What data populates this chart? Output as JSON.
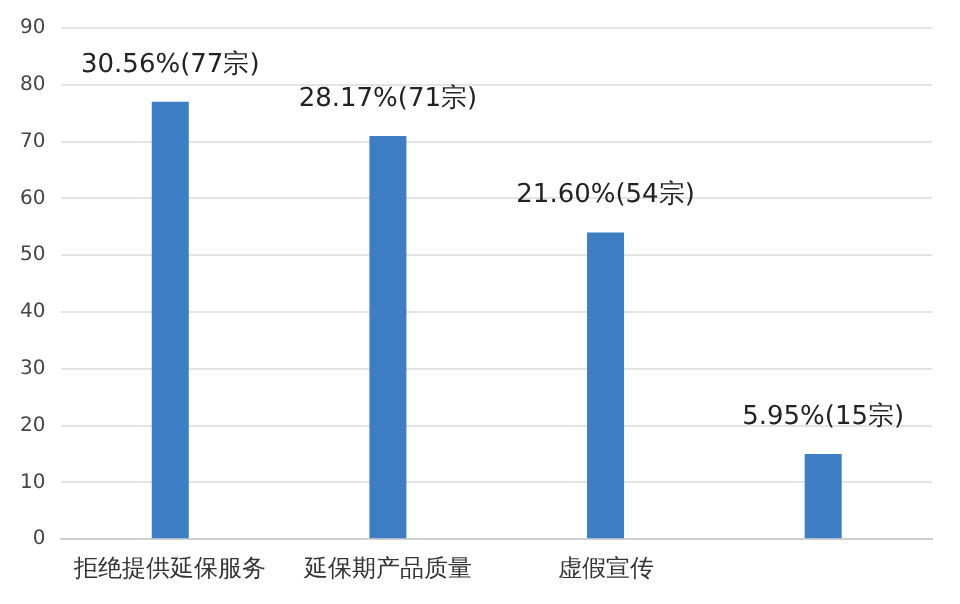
{
  "chart_data": {
    "type": "bar",
    "categories": [
      "拒绝提供延保服务",
      "延保期产品质量",
      "虚假宣传",
      null
    ],
    "values": [
      77,
      71,
      54,
      15
    ],
    "color": "#3c7dc4",
    "value_labels": [
      "30.56%(77宗)",
      "28.17%(71宗)",
      "21.60%(54宗)",
      "5.95%(15宗)"
    ],
    "ylim": [
      0,
      90
    ],
    "yticks": [
      0,
      10,
      20,
      30,
      40,
      50,
      60,
      70,
      80,
      90
    ],
    "grid": "y"
  }
}
